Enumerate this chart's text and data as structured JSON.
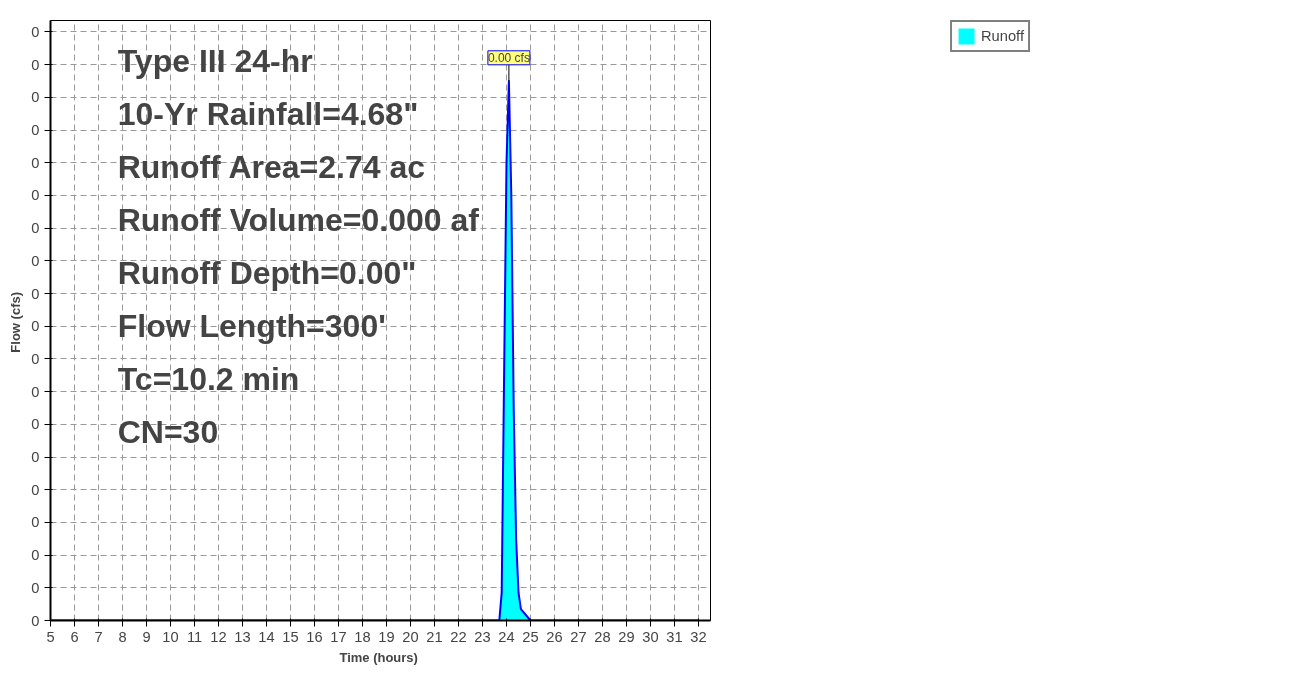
{
  "chart_data": {
    "type": "area",
    "xlabel": "Time  (hours)",
    "ylabel": "Flow  (cfs)",
    "xlim": [
      5,
      32.5
    ],
    "xticks": [
      5,
      6,
      7,
      8,
      9,
      10,
      11,
      12,
      13,
      14,
      15,
      16,
      17,
      18,
      19,
      20,
      21,
      22,
      23,
      24,
      25,
      26,
      27,
      28,
      29,
      30,
      31,
      32
    ],
    "ylim": [
      0,
      0.00367
    ],
    "yticks": [
      {
        "value": 0,
        "label": "0"
      },
      {
        "value": 0.0002,
        "label": "0"
      },
      {
        "value": 0.0004,
        "label": "0"
      },
      {
        "value": 0.0006,
        "label": "0"
      },
      {
        "value": 0.0008,
        "label": "0"
      },
      {
        "value": 0.001,
        "label": "0"
      },
      {
        "value": 0.0012,
        "label": "0"
      },
      {
        "value": 0.0014,
        "label": "0"
      },
      {
        "value": 0.0016,
        "label": "0"
      },
      {
        "value": 0.0018,
        "label": "0"
      },
      {
        "value": 0.002,
        "label": "0"
      },
      {
        "value": 0.0022,
        "label": "0"
      },
      {
        "value": 0.0024,
        "label": "0"
      },
      {
        "value": 0.0026,
        "label": "0"
      },
      {
        "value": 0.0028,
        "label": "0"
      },
      {
        "value": 0.003,
        "label": "0"
      },
      {
        "value": 0.0032,
        "label": "0"
      },
      {
        "value": 0.0034,
        "label": "0"
      },
      {
        "value": 0.0036,
        "label": "0"
      }
    ],
    "grid": true,
    "legend": "top right",
    "series": [
      {
        "name": "Runoff",
        "color": "#00ffff",
        "x": [
          5,
          23.7,
          23.8,
          23.9,
          24.0,
          24.1,
          24.2,
          24.3,
          24.4,
          24.5,
          24.6,
          25.0,
          32
        ],
        "values": [
          0,
          0,
          0.00017,
          0.0015,
          0.0028,
          0.0033,
          0.0026,
          0.0013,
          0.0005,
          0.00017,
          7e-05,
          0,
          0
        ]
      }
    ],
    "annotations": [
      {
        "text": "0.00 cfs",
        "x": 24.1,
        "y": 0.0033
      },
      "Type III 24-hr",
      "10-Yr Rainfall=4.68\"",
      "Runoff Area=2.74 ac",
      "Runoff Volume=0.000 af",
      "Runoff Depth=0.00\"",
      "Flow Length=300'",
      "Tc=10.2 min",
      "CN=30"
    ]
  }
}
